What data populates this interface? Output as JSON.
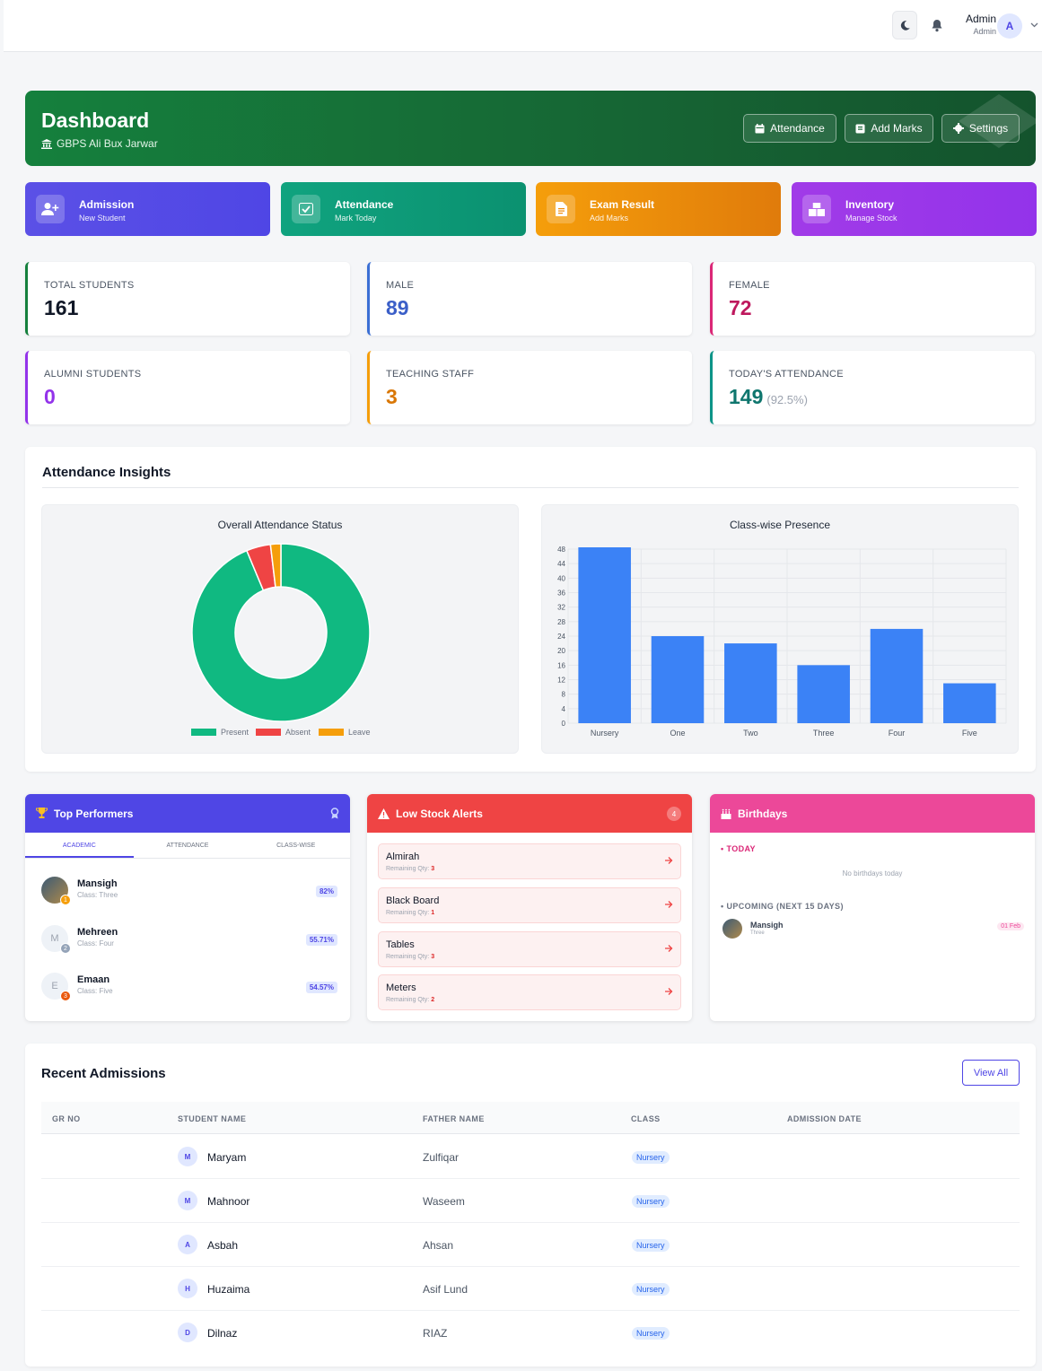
{
  "topbar": {
    "user_name": "Admin",
    "user_role": "Admin",
    "avatar_letter": "A"
  },
  "header": {
    "title": "Dashboard",
    "school": "GBPS Ali Bux Jarwar",
    "buttons": {
      "attendance": "Attendance",
      "add_marks": "Add Marks",
      "settings": "Settings"
    }
  },
  "quick_actions": [
    {
      "title": "Admission",
      "subtitle": "New Student",
      "icon": "add-user-icon",
      "color": "#4f46e5"
    },
    {
      "title": "Attendance",
      "subtitle": "Mark Today",
      "icon": "check-icon",
      "color": "#10a37f"
    },
    {
      "title": "Exam Result",
      "subtitle": "Add Marks",
      "icon": "document-icon",
      "color": "#f08c0a"
    },
    {
      "title": "Inventory",
      "subtitle": "Manage Stock",
      "icon": "boxes-icon",
      "color": "#a13be8"
    }
  ],
  "stats": {
    "total": {
      "label": "TOTAL STUDENTS",
      "value": "161"
    },
    "male": {
      "label": "MALE",
      "value": "89"
    },
    "female": {
      "label": "FEMALE",
      "value": "72"
    },
    "alumni": {
      "label": "ALUMNI STUDENTS",
      "value": "0"
    },
    "staff": {
      "label": "TEACHING STAFF",
      "value": "3"
    },
    "attendance": {
      "label": "TODAY'S ATTENDANCE",
      "value": "149",
      "percent": "(92.5%)"
    }
  },
  "insights": {
    "title": "Attendance Insights"
  },
  "chart_data": [
    {
      "type": "pie",
      "title": "Overall Attendance Status",
      "categories": [
        "Present",
        "Absent",
        "Leave"
      ],
      "values": [
        149,
        7,
        3
      ],
      "colors": [
        "#10b981",
        "#ef4444",
        "#f59e0b"
      ],
      "legend": "bottom"
    },
    {
      "type": "bar",
      "title": "Class-wise Presence",
      "categories": [
        "Nursery",
        "One",
        "Two",
        "Three",
        "Four",
        "Five"
      ],
      "values": [
        50,
        24,
        22,
        16,
        26,
        11
      ],
      "ylim": [
        0,
        48
      ],
      "yticks": [
        0,
        4,
        8,
        12,
        16,
        20,
        24,
        28,
        32,
        36,
        40,
        44,
        48
      ],
      "color": "#3b82f6",
      "grid": true
    }
  ],
  "top_performers": {
    "title": "Top Performers",
    "tabs": [
      "ACADEMIC",
      "ATTENDANCE",
      "CLASS-WISE"
    ],
    "items": [
      {
        "name": "Mansigh",
        "class": "Class: Three",
        "score": "82%",
        "rank": "1",
        "initial": ""
      },
      {
        "name": "Mehreen",
        "class": "Class: Four",
        "score": "55.71%",
        "rank": "2",
        "initial": "M"
      },
      {
        "name": "Emaan",
        "class": "Class: Five",
        "score": "54.57%",
        "rank": "3",
        "initial": "E"
      }
    ]
  },
  "low_stock": {
    "title": "Low Stock Alerts",
    "count": "4",
    "items": [
      {
        "name": "Almirah",
        "qty_label": "Remaining Qty:",
        "qty": "3"
      },
      {
        "name": "Black Board",
        "qty_label": "Remaining Qty:",
        "qty": "1"
      },
      {
        "name": "Tables",
        "qty_label": "Remaining Qty:",
        "qty": "3"
      },
      {
        "name": "Meters",
        "qty_label": "Remaining Qty:",
        "qty": "2"
      }
    ]
  },
  "birthdays": {
    "title": "Birthdays",
    "today_label": "TODAY",
    "today_empty": "No birthdays today",
    "upcoming_label": "UPCOMING (NEXT 15 DAYS)",
    "upcoming": [
      {
        "name": "Mansigh",
        "class": "Three",
        "date": "01 Feb"
      }
    ]
  },
  "recent_admissions": {
    "title": "Recent Admissions",
    "view_all": "View All",
    "columns": [
      "GR NO",
      "STUDENT NAME",
      "FATHER NAME",
      "CLASS",
      "ADMISSION DATE"
    ],
    "rows": [
      {
        "initial": "M",
        "student": "Maryam",
        "father": "Zulfiqar",
        "class": "Nursery"
      },
      {
        "initial": "M",
        "student": "Mahnoor",
        "father": "Waseem",
        "class": "Nursery"
      },
      {
        "initial": "A",
        "student": "Asbah",
        "father": "Ahsan",
        "class": "Nursery"
      },
      {
        "initial": "H",
        "student": "Huzaima",
        "father": "Asif Lund",
        "class": "Nursery"
      },
      {
        "initial": "D",
        "student": "Dilnaz",
        "father": "RIAZ",
        "class": "Nursery"
      }
    ]
  }
}
